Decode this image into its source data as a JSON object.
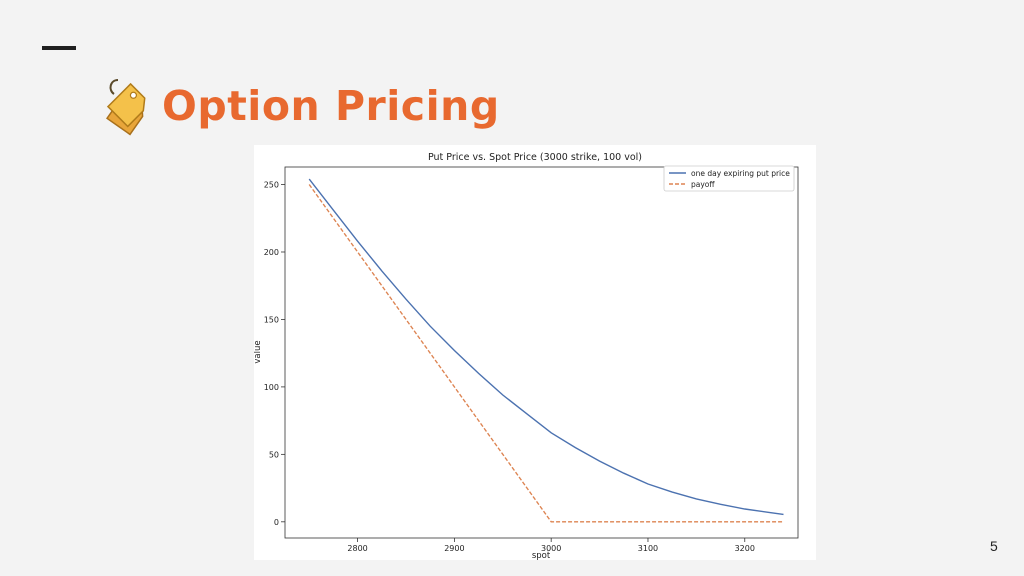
{
  "slide": {
    "title": "Option Pricing",
    "title_icon": "price-tag-icon",
    "page_number": "5",
    "accent_color": "#e8692f"
  },
  "chart_data": {
    "type": "line",
    "title": "Put Price vs. Spot Price (3000 strike, 100 vol)",
    "xlabel": "spot",
    "ylabel": "value",
    "xlim": [
      2725,
      3255
    ],
    "ylim": [
      -12,
      263
    ],
    "xticks": [
      2800,
      2900,
      3000,
      3100,
      3200
    ],
    "yticks": [
      0,
      50,
      100,
      150,
      200,
      250
    ],
    "legend_position": "top-right",
    "grid": false,
    "series": [
      {
        "name": "one day expiring put price",
        "color": "#4c72b0",
        "style": "solid",
        "x": [
          2750,
          2775,
          2800,
          2825,
          2850,
          2875,
          2900,
          2925,
          2950,
          2975,
          3000,
          3025,
          3050,
          3075,
          3100,
          3125,
          3150,
          3175,
          3200,
          3225,
          3240
        ],
        "y": [
          254,
          231,
          208,
          186,
          165,
          145,
          127,
          110,
          94,
          80,
          66,
          55,
          45,
          36,
          28,
          22,
          17,
          13,
          9.5,
          7,
          5.5
        ]
      },
      {
        "name": "payoff",
        "color": "#dd8452",
        "style": "dashed",
        "x": [
          2750,
          3000,
          3240
        ],
        "y": [
          250,
          0,
          0
        ]
      }
    ]
  }
}
